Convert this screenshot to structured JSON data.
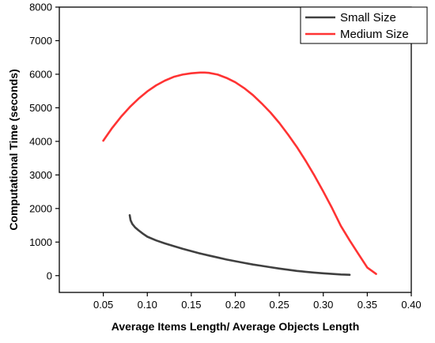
{
  "chart_data": {
    "type": "line",
    "title": "",
    "xlabel": "Average Items Length/ Average Objects Length",
    "ylabel": "Computational Time (seconds)",
    "xlim": [
      0.0,
      0.4
    ],
    "ylim": [
      -500,
      8000
    ],
    "x_ticks": [
      0.05,
      0.1,
      0.15,
      0.2,
      0.25,
      0.3,
      0.35,
      0.4
    ],
    "x_tick_labels": [
      "0.05",
      "0.10",
      "0.15",
      "0.20",
      "0.25",
      "0.30",
      "0.35",
      "0.40"
    ],
    "y_ticks": [
      0,
      1000,
      2000,
      3000,
      4000,
      5000,
      6000,
      7000,
      8000
    ],
    "y_tick_labels": [
      "0",
      "1000",
      "2000",
      "3000",
      "4000",
      "5000",
      "6000",
      "7000",
      "8000"
    ],
    "grid": false,
    "legend_position": "top-right",
    "series": [
      {
        "name": "Small Size",
        "color": "#404040",
        "x": [
          0.08,
          0.081,
          0.083,
          0.086,
          0.09,
          0.095,
          0.1,
          0.11,
          0.12,
          0.13,
          0.14,
          0.15,
          0.16,
          0.17,
          0.18,
          0.19,
          0.2,
          0.21,
          0.22,
          0.23,
          0.24,
          0.25,
          0.26,
          0.27,
          0.28,
          0.29,
          0.3,
          0.31,
          0.32,
          0.33
        ],
        "y": [
          1800,
          1650,
          1540,
          1440,
          1350,
          1250,
          1160,
          1050,
          960,
          880,
          800,
          730,
          660,
          600,
          540,
          480,
          430,
          380,
          330,
          290,
          250,
          210,
          175,
          140,
          115,
          90,
          70,
          50,
          35,
          25
        ]
      },
      {
        "name": "Medium Size",
        "color": "#ff3333",
        "x": [
          0.05,
          0.06,
          0.07,
          0.08,
          0.09,
          0.1,
          0.11,
          0.12,
          0.13,
          0.14,
          0.15,
          0.16,
          0.165,
          0.17,
          0.18,
          0.19,
          0.2,
          0.21,
          0.22,
          0.23,
          0.24,
          0.25,
          0.26,
          0.27,
          0.28,
          0.29,
          0.3,
          0.31,
          0.32,
          0.33,
          0.34,
          0.35,
          0.36
        ],
        "y": [
          4020,
          4400,
          4730,
          5020,
          5270,
          5490,
          5670,
          5810,
          5920,
          5990,
          6030,
          6050,
          6050,
          6040,
          5990,
          5890,
          5760,
          5590,
          5380,
          5130,
          4860,
          4550,
          4200,
          3830,
          3420,
          2980,
          2510,
          2010,
          1480,
          1050,
          640,
          240,
          50
        ]
      }
    ]
  }
}
